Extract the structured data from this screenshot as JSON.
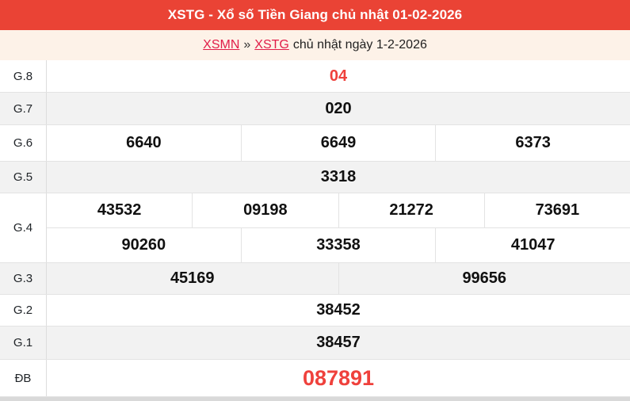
{
  "header": {
    "title": "XSTG - Xổ số Tiền Giang chủ nhật 01-02-2026"
  },
  "breadcrumb": {
    "link_region": "XSMN",
    "separator": "»",
    "link_province": "XSTG",
    "suffix": "chủ nhật ngày 1-2-2026"
  },
  "colors": {
    "titlebar_bg": "#ea4335",
    "number_red": "#ef413c",
    "link_red": "#e11d48",
    "row_shade": "#f2f2f2",
    "page_bg": "#fdf2e8",
    "border": "#e3e3e3"
  },
  "table": {
    "rows": [
      {
        "id": "g8",
        "label": "G.8",
        "highlight": true,
        "special": false,
        "shade": false,
        "lines": [
          [
            "04"
          ]
        ]
      },
      {
        "id": "g7",
        "label": "G.7",
        "highlight": false,
        "special": false,
        "shade": true,
        "lines": [
          [
            "020"
          ]
        ]
      },
      {
        "id": "g6",
        "label": "G.6",
        "highlight": false,
        "special": false,
        "shade": false,
        "lines": [
          [
            "6640",
            "6649",
            "6373"
          ]
        ]
      },
      {
        "id": "g5",
        "label": "G.5",
        "highlight": false,
        "special": false,
        "shade": true,
        "lines": [
          [
            "3318"
          ]
        ]
      },
      {
        "id": "g4",
        "label": "G.4",
        "highlight": false,
        "special": false,
        "shade": false,
        "lines": [
          [
            "43532",
            "09198",
            "21272",
            "73691"
          ],
          [
            "90260",
            "33358",
            "41047"
          ]
        ]
      },
      {
        "id": "g3",
        "label": "G.3",
        "highlight": false,
        "special": false,
        "shade": true,
        "lines": [
          [
            "45169",
            "99656"
          ]
        ]
      },
      {
        "id": "g2",
        "label": "G.2",
        "highlight": false,
        "special": false,
        "shade": false,
        "lines": [
          [
            "38452"
          ]
        ]
      },
      {
        "id": "g1",
        "label": "G.1",
        "highlight": false,
        "special": false,
        "shade": true,
        "lines": [
          [
            "38457"
          ]
        ]
      },
      {
        "id": "db",
        "label": "ĐB",
        "highlight": true,
        "special": true,
        "shade": false,
        "lines": [
          [
            "087891"
          ]
        ]
      }
    ]
  }
}
